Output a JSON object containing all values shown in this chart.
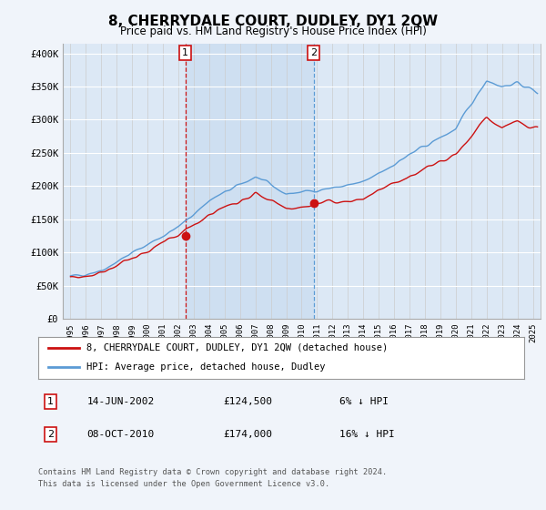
{
  "title": "8, CHERRYDALE COURT, DUDLEY, DY1 2QW",
  "subtitle": "Price paid vs. HM Land Registry's House Price Index (HPI)",
  "ylabel_ticks": [
    "£0",
    "£50K",
    "£100K",
    "£150K",
    "£200K",
    "£250K",
    "£300K",
    "£350K",
    "£400K"
  ],
  "ytick_values": [
    0,
    50000,
    100000,
    150000,
    200000,
    250000,
    300000,
    350000,
    400000
  ],
  "ylim": [
    0,
    415000
  ],
  "xlim_start": 1994.5,
  "xlim_end": 2025.5,
  "hpi_color": "#5b9bd5",
  "price_color": "#cc1111",
  "shade_color": "#dce8f5",
  "transaction1_date": "14-JUN-2002",
  "transaction1_price": 124500,
  "transaction1_label": "6% ↓ HPI",
  "transaction2_date": "08-OCT-2010",
  "transaction2_price": 174000,
  "transaction2_label": "16% ↓ HPI",
  "legend_line1": "8, CHERRYDALE COURT, DUDLEY, DY1 2QW (detached house)",
  "legend_line2": "HPI: Average price, detached house, Dudley",
  "footer": "Contains HM Land Registry data © Crown copyright and database right 2024.\nThis data is licensed under the Open Government Licence v3.0.",
  "marker1_x": 2002.45,
  "marker1_y": 124500,
  "marker2_x": 2010.77,
  "marker2_y": 174000,
  "xtick_years": [
    1995,
    1996,
    1997,
    1998,
    1999,
    2000,
    2001,
    2002,
    2003,
    2004,
    2005,
    2006,
    2007,
    2008,
    2009,
    2010,
    2011,
    2012,
    2013,
    2014,
    2015,
    2016,
    2017,
    2018,
    2019,
    2020,
    2021,
    2022,
    2023,
    2024,
    2025
  ]
}
